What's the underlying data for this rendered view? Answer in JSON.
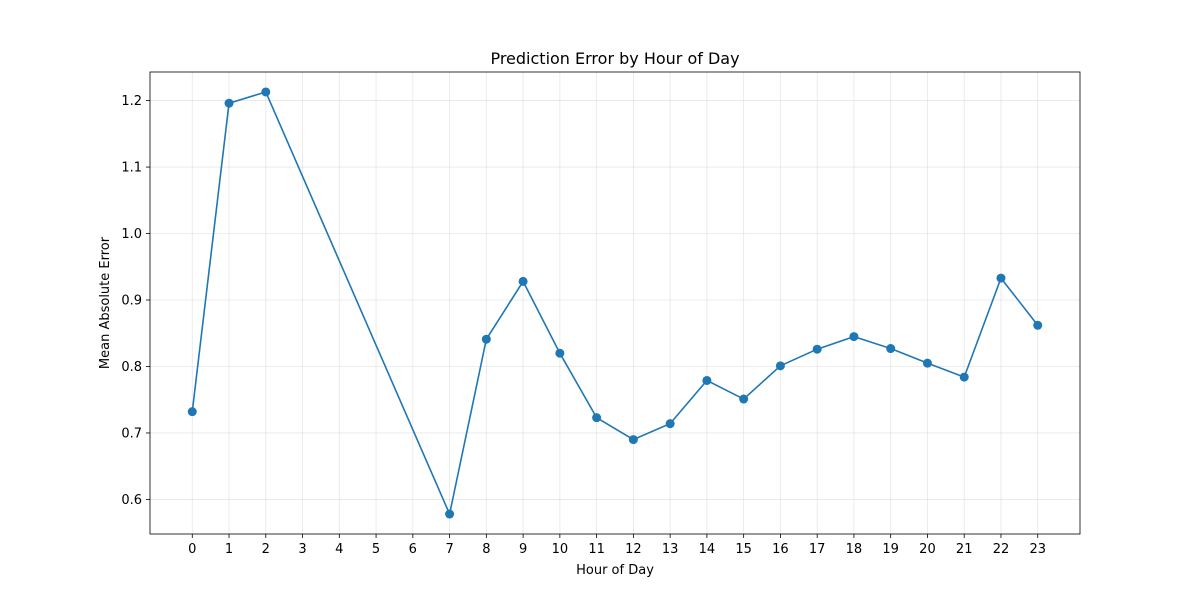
{
  "chart_data": {
    "type": "line",
    "title": "Prediction Error by Hour of Day",
    "xlabel": "Hour of Day",
    "ylabel": "Mean Absolute Error",
    "x": [
      0,
      1,
      2,
      3,
      4,
      5,
      6,
      7,
      8,
      9,
      10,
      11,
      12,
      13,
      14,
      15,
      16,
      17,
      18,
      19,
      20,
      21,
      22,
      23
    ],
    "xticks": [
      "0",
      "1",
      "2",
      "3",
      "4",
      "5",
      "6",
      "7",
      "8",
      "9",
      "10",
      "11",
      "12",
      "13",
      "14",
      "15",
      "16",
      "17",
      "18",
      "19",
      "20",
      "21",
      "22",
      "23"
    ],
    "yticks": [
      "0.6",
      "0.7",
      "0.8",
      "0.9",
      "1.0",
      "1.1",
      "1.2"
    ],
    "xlim": [
      -1.15,
      24.15
    ],
    "ylim": [
      0.548,
      1.243
    ],
    "grid": true,
    "series": [
      {
        "points": [
          {
            "x": 0,
            "y": 0.732
          },
          {
            "x": 1,
            "y": 1.196
          },
          {
            "x": 2,
            "y": 1.213
          },
          {
            "x": 7,
            "y": 0.578
          },
          {
            "x": 8,
            "y": 0.841
          },
          {
            "x": 9,
            "y": 0.928
          },
          {
            "x": 10,
            "y": 0.82
          },
          {
            "x": 11,
            "y": 0.723
          },
          {
            "x": 12,
            "y": 0.69
          },
          {
            "x": 13,
            "y": 0.714
          },
          {
            "x": 14,
            "y": 0.779
          },
          {
            "x": 15,
            "y": 0.751
          },
          {
            "x": 16,
            "y": 0.801
          },
          {
            "x": 17,
            "y": 0.826
          },
          {
            "x": 18,
            "y": 0.845
          },
          {
            "x": 19,
            "y": 0.827
          },
          {
            "x": 20,
            "y": 0.805
          },
          {
            "x": 21,
            "y": 0.784
          },
          {
            "x": 22,
            "y": 0.933
          },
          {
            "x": 23,
            "y": 0.862
          }
        ]
      }
    ],
    "colors": {
      "line": "#1f77b4",
      "marker": "#1f77b4"
    }
  }
}
